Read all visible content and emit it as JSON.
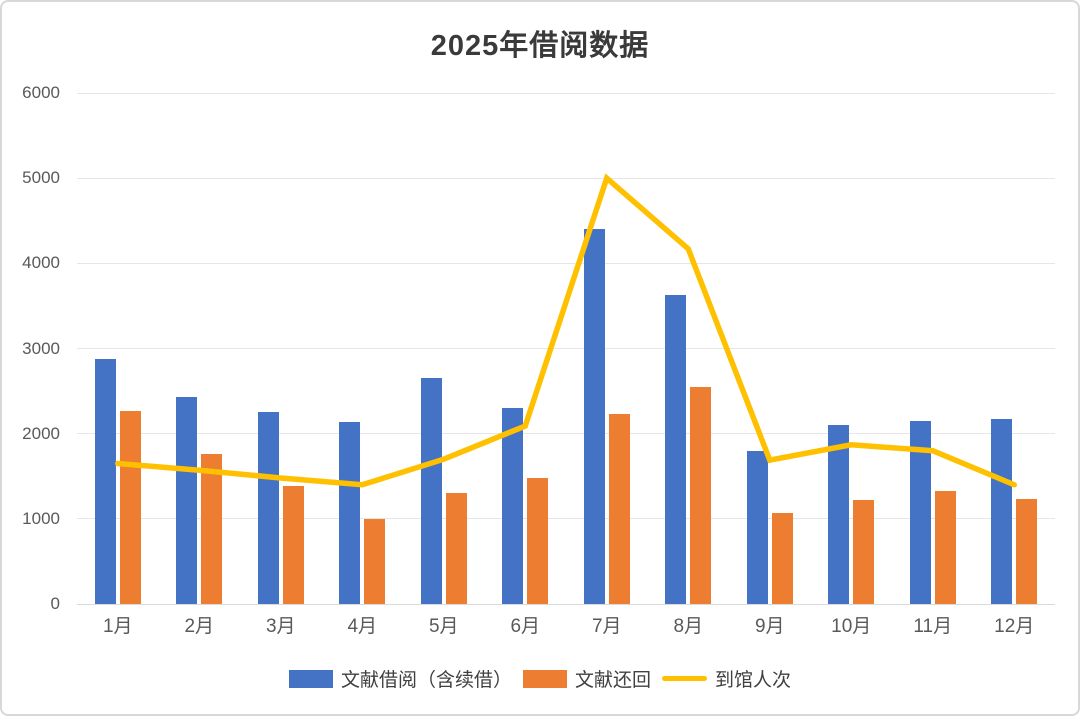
{
  "chart_data": {
    "type": "bar",
    "title": "2025年借阅数据",
    "categories": [
      "1月",
      "2月",
      "3月",
      "4月",
      "5月",
      "6月",
      "7月",
      "8月",
      "9月",
      "10月",
      "11月",
      "12月"
    ],
    "series": [
      {
        "name": "文献借阅（含续借）",
        "kind": "bar",
        "color": "#4472C4",
        "values": [
          2880,
          2430,
          2250,
          2140,
          2650,
          2300,
          4400,
          3630,
          1800,
          2100,
          2150,
          2170
        ]
      },
      {
        "name": "文献还回",
        "kind": "bar",
        "color": "#ED7D31",
        "values": [
          2270,
          1760,
          1390,
          1000,
          1300,
          1480,
          2230,
          2550,
          1070,
          1220,
          1330,
          1230
        ]
      },
      {
        "name": "到馆人次",
        "kind": "line",
        "color": "#FFC000",
        "values": [
          1650,
          1570,
          1480,
          1400,
          1700,
          2090,
          5000,
          4170,
          1690,
          1870,
          1800,
          1400
        ]
      }
    ],
    "ylim": [
      0,
      6000
    ],
    "yticks": [
      0,
      1000,
      2000,
      3000,
      4000,
      5000,
      6000
    ],
    "grid": true,
    "legend_position": "bottom"
  },
  "colors": {
    "grid": "#e6e6e6",
    "axis_line": "#d9d9d9",
    "tick_text": "#595959",
    "title_text": "#3a3a3a",
    "border": "#d8d8d8",
    "background": "#ffffff"
  }
}
